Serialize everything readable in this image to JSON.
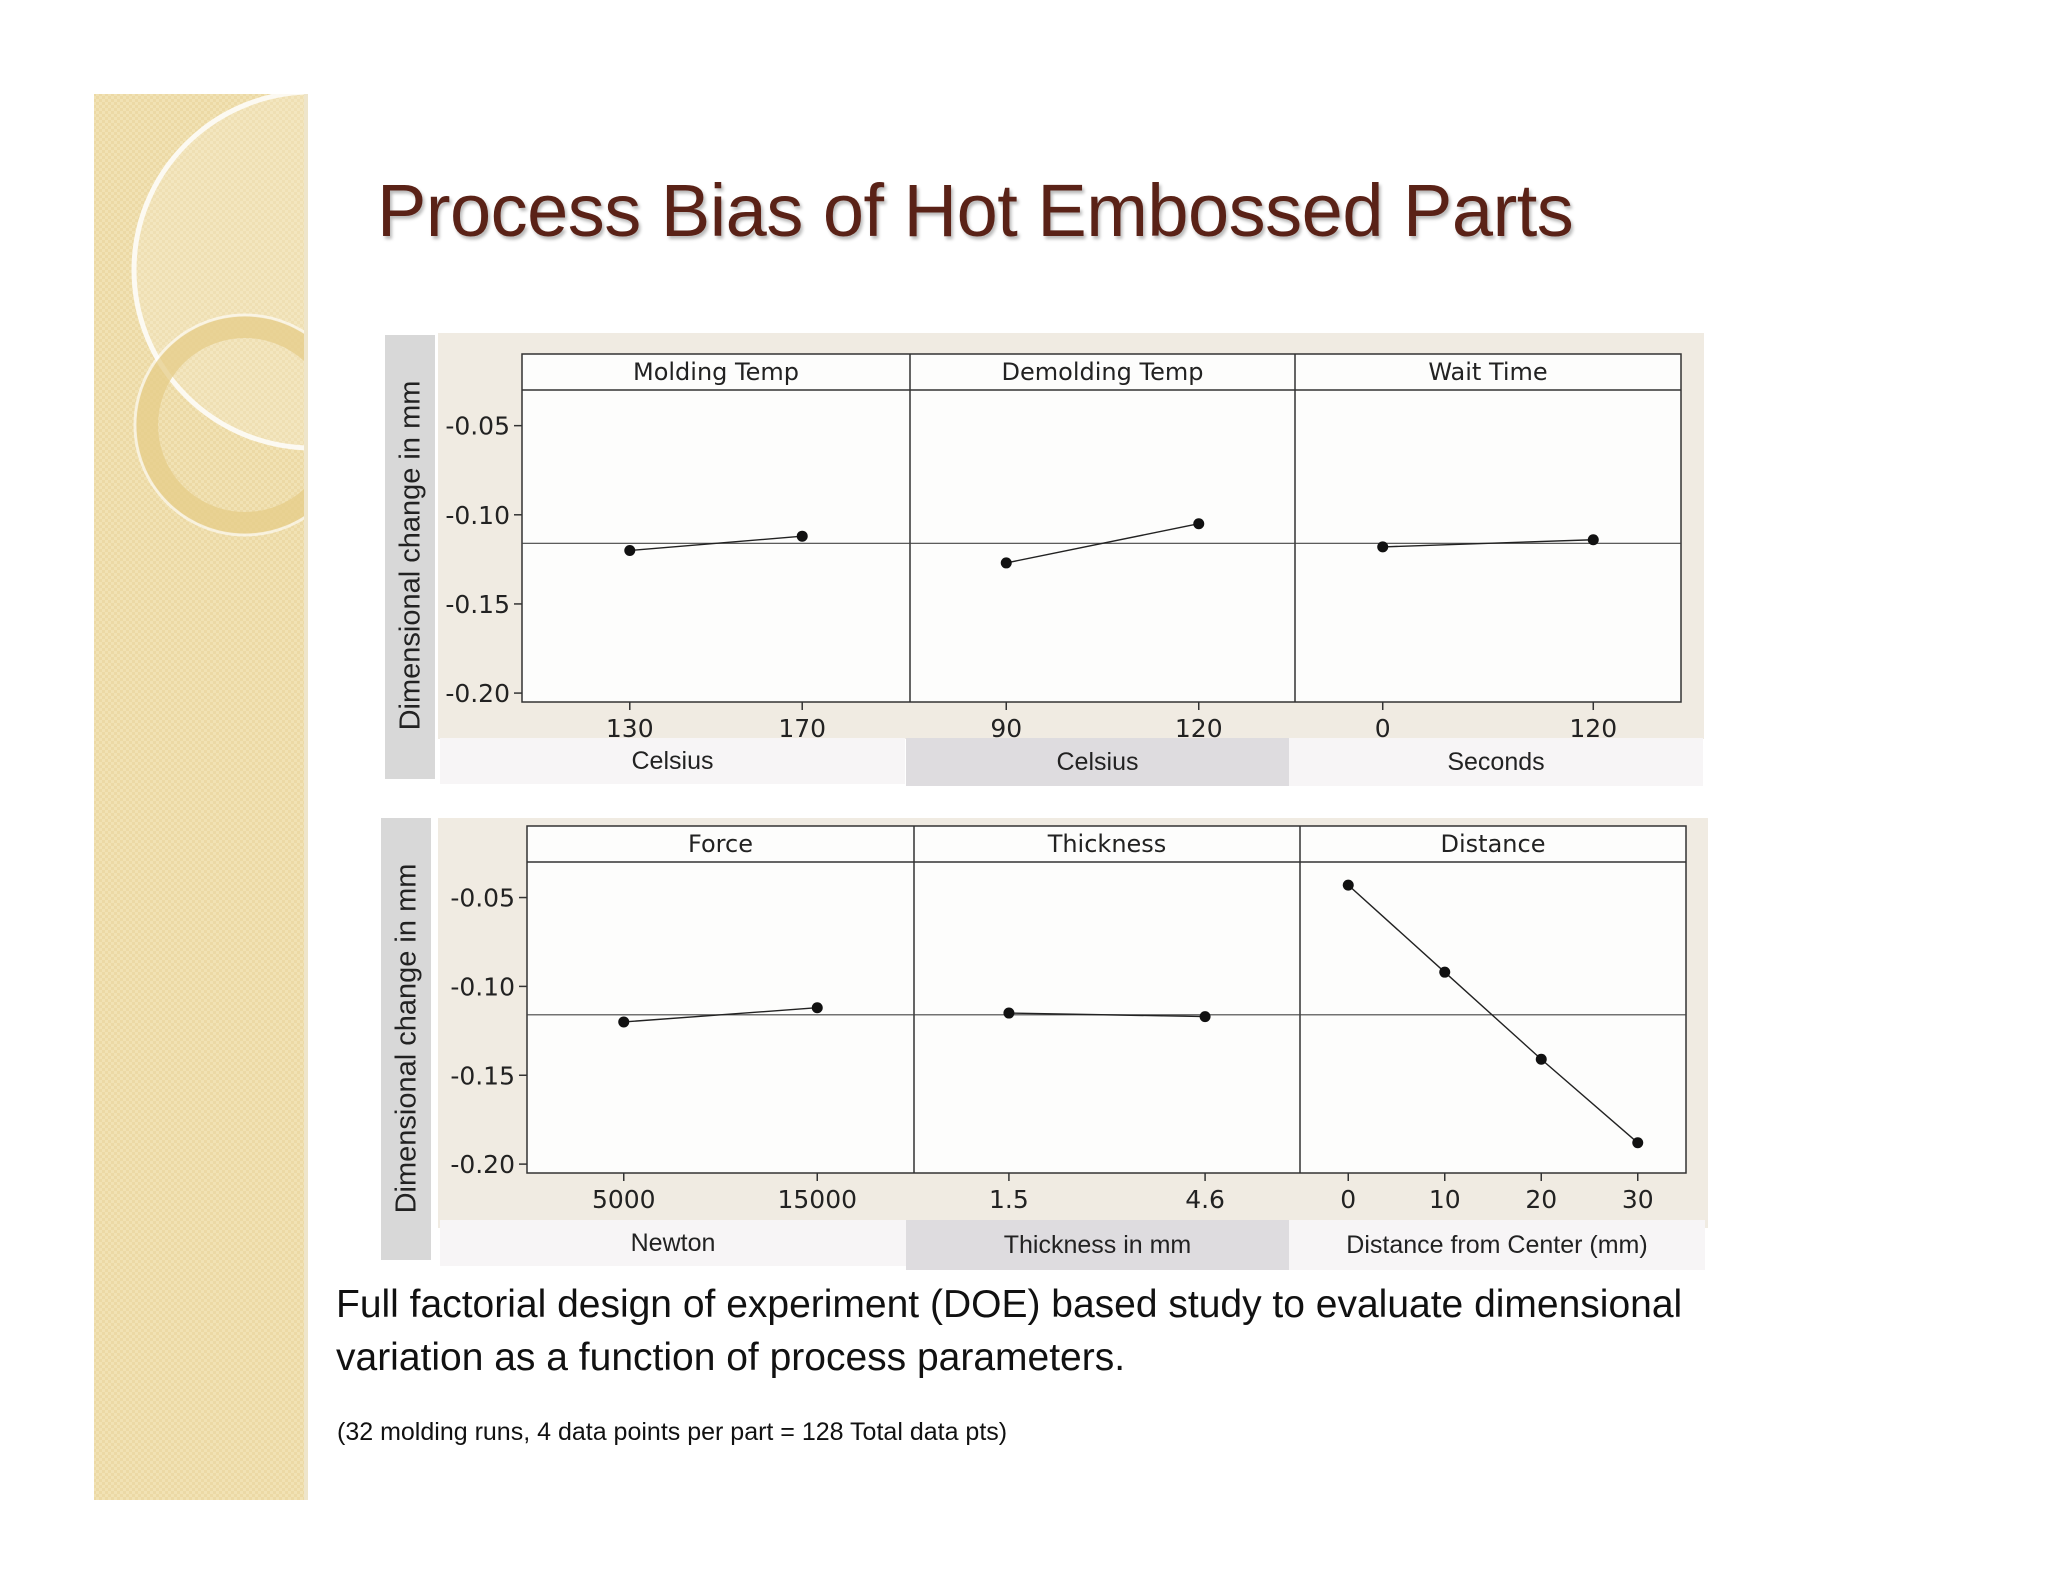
{
  "slide": {
    "title": "Process Bias of Hot Embossed Parts",
    "body_text": "Full factorial design of experiment (DOE) based study to evaluate dimensional variation as a function of process parameters.",
    "footnote": "(32 molding runs, 4 data points per part = 128 Total data pts)",
    "colors": {
      "title": "#5a2217",
      "sidebar": "#f1e2b4",
      "plot_bg": "#f0ebe2",
      "ring": "#e8cf8c"
    }
  },
  "chart_data": [
    {
      "type": "line",
      "ylabel": "Dimensional change in mm",
      "ylim": [
        -0.205,
        -0.03
      ],
      "yticks": [
        -0.05,
        -0.1,
        -0.15,
        -0.2
      ],
      "ytick_labels": [
        "-0.05",
        "-0.10",
        "-0.15",
        "-0.20"
      ],
      "reference_line": -0.116,
      "panels": [
        {
          "title": "Molding Temp",
          "xlabel": "Celsius",
          "xlim": [
            105,
            195
          ],
          "x": [
            130,
            170
          ],
          "x_tick_labels": [
            "130",
            "170"
          ],
          "y": [
            -0.12,
            -0.112
          ]
        },
        {
          "title": "Demolding Temp",
          "xlabel": "Celsius",
          "xlim": [
            75,
            135
          ],
          "x": [
            90,
            120
          ],
          "x_tick_labels": [
            "90",
            "120"
          ],
          "y": [
            -0.127,
            -0.105
          ]
        },
        {
          "title": "Wait Time",
          "xlabel": "Seconds",
          "xlim": [
            -50,
            170
          ],
          "x": [
            0,
            120
          ],
          "x_tick_labels": [
            "0",
            "120"
          ],
          "y": [
            -0.118,
            -0.114
          ]
        }
      ]
    },
    {
      "type": "line",
      "ylabel": "Dimensional change in mm",
      "ylim": [
        -0.205,
        -0.03
      ],
      "yticks": [
        -0.05,
        -0.1,
        -0.15,
        -0.2
      ],
      "ytick_labels": [
        "-0.05",
        "-0.10",
        "-0.15",
        "-0.20"
      ],
      "reference_line": -0.116,
      "panels": [
        {
          "title": "Force",
          "xlabel": "Newton",
          "xlim": [
            0,
            20000
          ],
          "x": [
            5000,
            15000
          ],
          "x_tick_labels": [
            "5000",
            "15000"
          ],
          "y": [
            -0.12,
            -0.112
          ]
        },
        {
          "title": "Thickness",
          "xlabel": "Thickness in mm",
          "xlim": [
            0,
            6.1
          ],
          "x": [
            1.5,
            4.6
          ],
          "x_tick_labels": [
            "1.5",
            "4.6"
          ],
          "y": [
            -0.115,
            -0.117
          ]
        },
        {
          "title": "Distance",
          "xlabel": "Distance  from Center (mm)",
          "xlim": [
            -5,
            35
          ],
          "x": [
            0,
            10,
            20,
            30
          ],
          "x_tick_labels": [
            "0",
            "10",
            "20",
            "30"
          ],
          "y": [
            -0.043,
            -0.092,
            -0.141,
            -0.188
          ]
        }
      ]
    }
  ]
}
